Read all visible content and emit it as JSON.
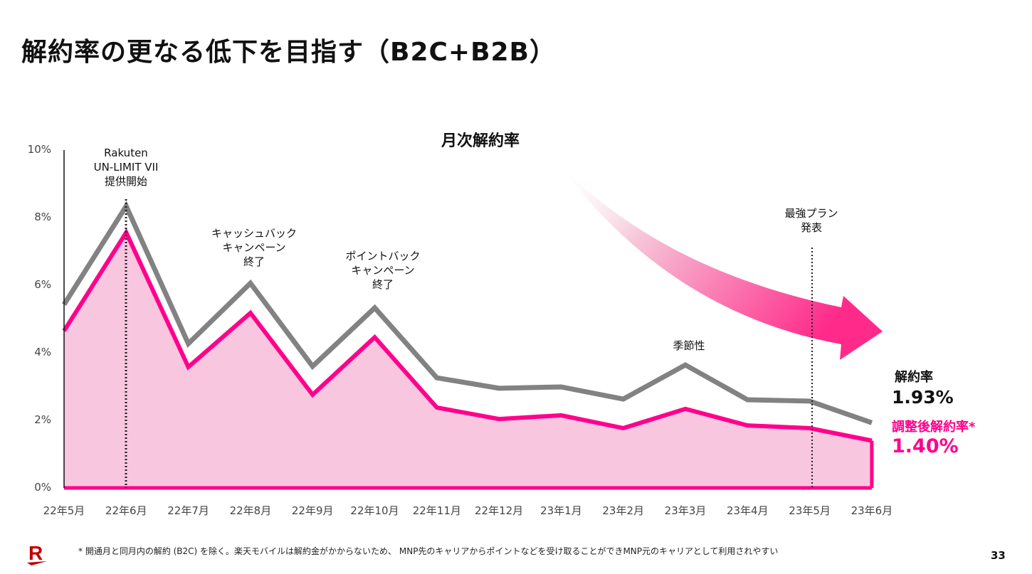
{
  "title": "解約率の更なる低下を目指す（B2C+B2B）",
  "footnote": "* 開通月と同月内の解約 (B2C) を除く。楽天モバイルは解約金がかからないため、 MNP先のキャリアからポイントなどを受け取ることができMNP元のキャリアとして利用されやすい",
  "page_number": "33",
  "logo_text": "R",
  "chart_data": {
    "type": "area",
    "title": "月次解約率",
    "categories": [
      "22年5月",
      "22年6月",
      "22年7月",
      "22年8月",
      "22年9月",
      "22年10月",
      "22年11月",
      "22年12月",
      "23年1月",
      "23年2月",
      "23年3月",
      "23年4月",
      "23年5月",
      "23年6月"
    ],
    "yticks": [
      "0%",
      "2%",
      "4%",
      "6%",
      "8%",
      "10%"
    ],
    "ylim": [
      0,
      10
    ],
    "series": [
      {
        "name": "解約率",
        "color": "#828282",
        "values": [
          5.43,
          8.34,
          4.27,
          6.06,
          3.6,
          5.33,
          3.26,
          2.95,
          2.99,
          2.63,
          3.64,
          2.61,
          2.57,
          1.93
        ]
      },
      {
        "name": "調整後解約率*",
        "color": "#ff008c",
        "fill": "#f8c6de",
        "values": [
          4.65,
          7.56,
          3.58,
          5.18,
          2.76,
          4.46,
          2.38,
          2.04,
          2.15,
          1.77,
          2.34,
          1.85,
          1.77,
          1.4
        ]
      }
    ],
    "annotations": {
      "launch": "Rakuten\nUN-LIMIT VII\n提供開始",
      "cashback": "キャッシュバック\nキャンペーン\n終了",
      "pointback": "ポイントバック\nキャンペーン\n終了",
      "seasonal": "季節性",
      "best_plan": "最強プラン\n発表"
    },
    "legend": {
      "churn_label": "解約率",
      "churn_value": "1.93%",
      "adj_label": "調整後解約率*",
      "adj_value": "1.40%"
    }
  }
}
